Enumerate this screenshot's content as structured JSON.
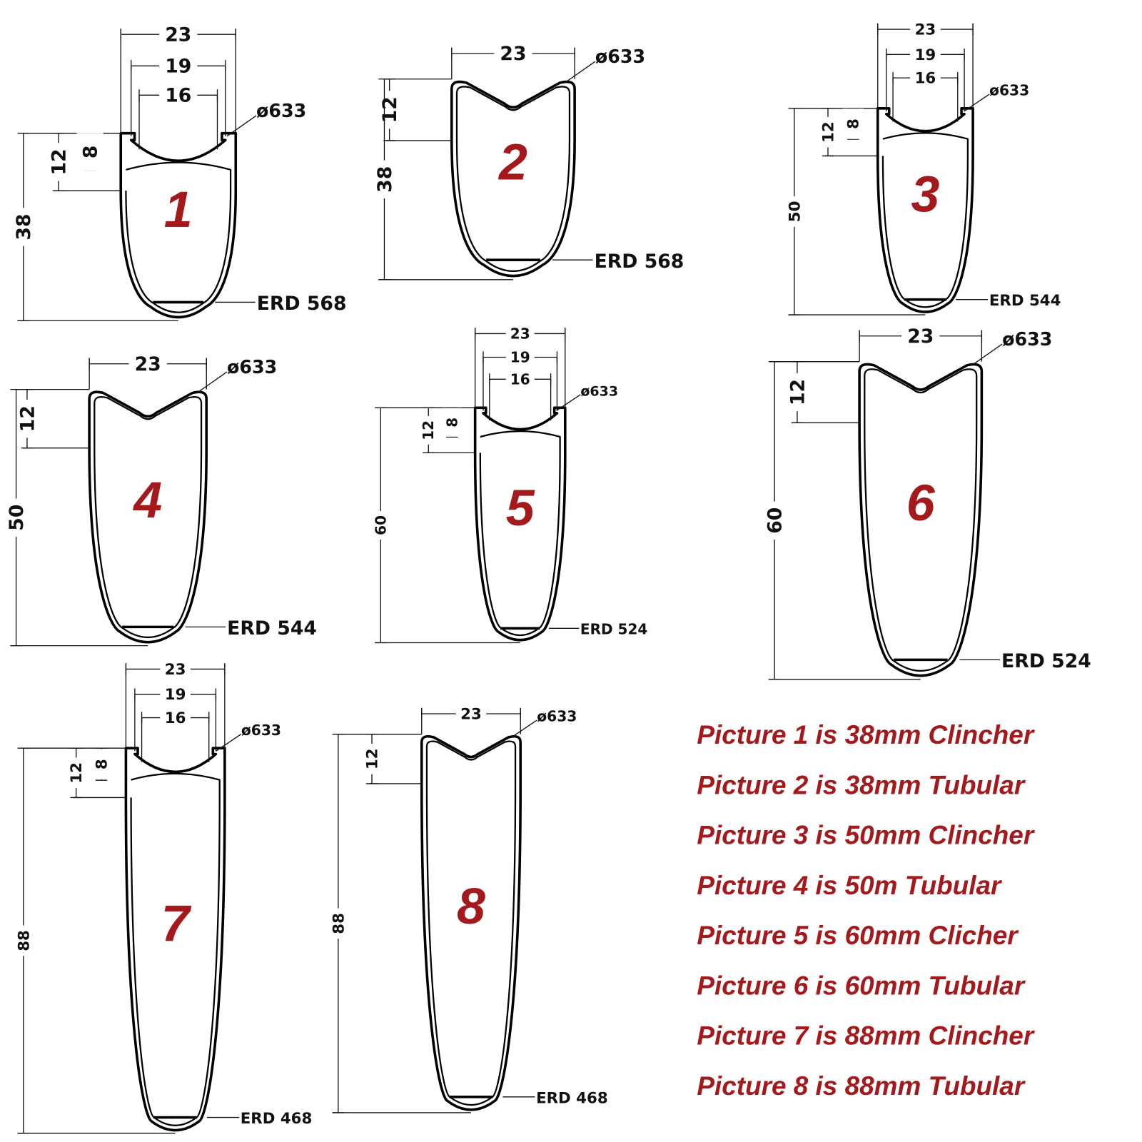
{
  "profiles": [
    {
      "number": "1",
      "width_outer": "23",
      "width_inner": "19",
      "width_bed": "16",
      "diameter": "ø633",
      "hook_depth": "12",
      "bed_depth": "8",
      "height": "38",
      "erd": "ERD 568"
    },
    {
      "number": "2",
      "width_outer": "23",
      "diameter": "ø633",
      "hook_depth": "12",
      "height": "38",
      "erd": "ERD 568"
    },
    {
      "number": "3",
      "width_outer": "23",
      "width_inner": "19",
      "width_bed": "16",
      "diameter": "ø633",
      "hook_depth": "12",
      "bed_depth": "8",
      "height": "50",
      "erd": "ERD 544"
    },
    {
      "number": "4",
      "width_outer": "23",
      "diameter": "ø633",
      "hook_depth": "12",
      "height": "50",
      "erd": "ERD 544"
    },
    {
      "number": "5",
      "width_outer": "23",
      "width_inner": "19",
      "width_bed": "16",
      "diameter": "ø633",
      "hook_depth": "12",
      "bed_depth": "8",
      "height": "60",
      "erd": "ERD 524"
    },
    {
      "number": "6",
      "width_outer": "23",
      "diameter": "ø633",
      "hook_depth": "12",
      "height": "60",
      "erd": "ERD 524"
    },
    {
      "number": "7",
      "width_outer": "23",
      "width_inner": "19",
      "width_bed": "16",
      "diameter": "ø633",
      "hook_depth": "12",
      "bed_depth": "8",
      "height": "88",
      "erd": "ERD 468"
    },
    {
      "number": "8",
      "width_outer": "23",
      "diameter": "ø633",
      "hook_depth": "12",
      "height": "88",
      "erd": "ERD 468"
    }
  ],
  "captions": [
    "Picture 1 is 38mm Clincher",
    "Picture 2 is 38mm Tubular",
    "Picture 3 is 50mm Clincher",
    "Picture 4 is 50m Tubular",
    "Picture 5 is 60mm Clicher",
    "Picture 6 is 60mm Tubular",
    "Picture 7 is 88mm Clincher",
    "Picture 8 is 88mm Tubular"
  ]
}
